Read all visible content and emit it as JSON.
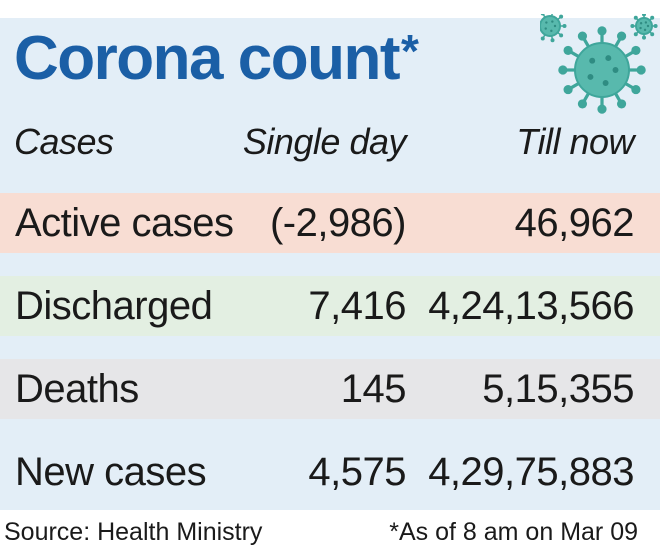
{
  "title": "Corona count",
  "title_mark": "*",
  "icon": "coronavirus-icon",
  "colors": {
    "panel": "#e3eef7",
    "title": "#1b5fa6",
    "active": "#f8ddd3",
    "discharged": "#e3efe2",
    "deaths": "#e6e6e8",
    "new": "#e3eef7",
    "virus": "#3fa69b"
  },
  "chart_data": {
    "type": "table",
    "columns": [
      "Cases",
      "Single day",
      "Till now"
    ],
    "rows": [
      {
        "label": "Active cases",
        "single_day": "(-2,986)",
        "till_now": "46,962"
      },
      {
        "label": "Discharged",
        "single_day": "7,416",
        "till_now": "4,24,13,566"
      },
      {
        "label": "Deaths",
        "single_day": "145",
        "till_now": "5,15,355"
      },
      {
        "label": "New cases",
        "single_day": "4,575",
        "till_now": "4,29,75,883"
      }
    ]
  },
  "footer": {
    "source": "Source: Health Ministry",
    "note": "*As of 8 am on Mar 09"
  }
}
